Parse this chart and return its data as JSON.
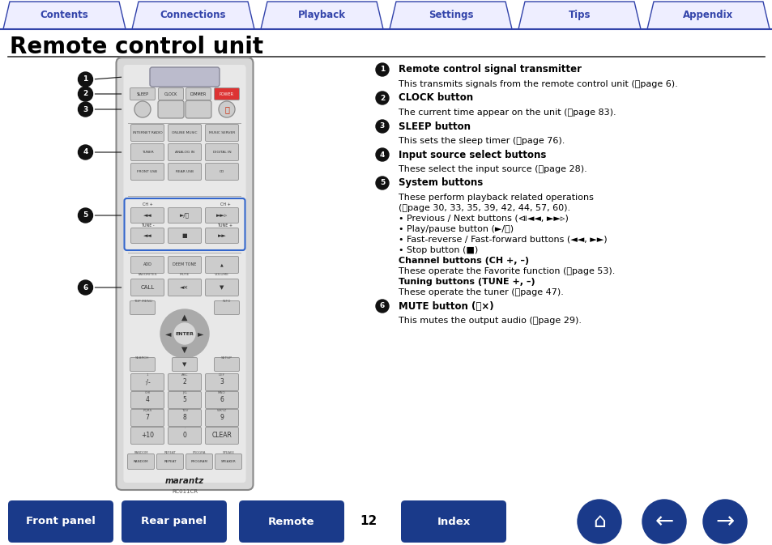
{
  "bg_color": "#ffffff",
  "title": "Remote control unit",
  "page_number": "12",
  "tab_labels": [
    "Contents",
    "Connections",
    "Playback",
    "Settings",
    "Tips",
    "Appendix"
  ],
  "tab_color": "#3344aa",
  "bottom_button_color": "#1a3a8a",
  "remote_body_color": "#e8e8e8",
  "remote_border_color": "#aaaaaa",
  "remote_btn_color": "#cccccc",
  "remote_btn_border": "#999999",
  "remote_highlight_color": "#5577cc",
  "annotation_items": [
    {
      "num": "1",
      "title": "Remote control signal transmitter",
      "body": "This transmits signals from the remote control unit (⍂page 6)."
    },
    {
      "num": "2",
      "title": "CLOCK button",
      "body": "The current time appear on the unit (⍂page 83)."
    },
    {
      "num": "3",
      "title": "SLEEP button",
      "body": "This sets the sleep timer (⍂page 76)."
    },
    {
      "num": "4",
      "title": "Input source select buttons",
      "body": "These select the input source (⍂page 28)."
    },
    {
      "num": "5",
      "title": "System buttons",
      "body_lines": [
        {
          "text": "These perform playback related operations",
          "bold": false
        },
        {
          "text": "(⍂page 30, 33, 35, 39, 42, 44, 57, 60).",
          "bold": false
        },
        {
          "text": "• Previous / Next buttons (⧏◄◄, ►►▹)",
          "bold": false
        },
        {
          "text": "• Play/pause button (►/⏸)",
          "bold": false
        },
        {
          "text": "• Fast-reverse / Fast-forward buttons (◄◄, ►►)",
          "bold": false
        },
        {
          "text": "• Stop button (■)",
          "bold": false
        },
        {
          "text": "Channel buttons (CH +, –)",
          "bold": true
        },
        {
          "text": "These operate the Favorite function (⍂page 53).",
          "bold": false
        },
        {
          "text": "Tuning buttons (TUNE +, –)",
          "bold": true
        },
        {
          "text": "These operate the tuner (⍂page 47).",
          "bold": false
        }
      ]
    },
    {
      "num": "6",
      "title": "MUTE button (𝅗×)",
      "body": "This mutes the output audio (⍂page 29)."
    }
  ]
}
